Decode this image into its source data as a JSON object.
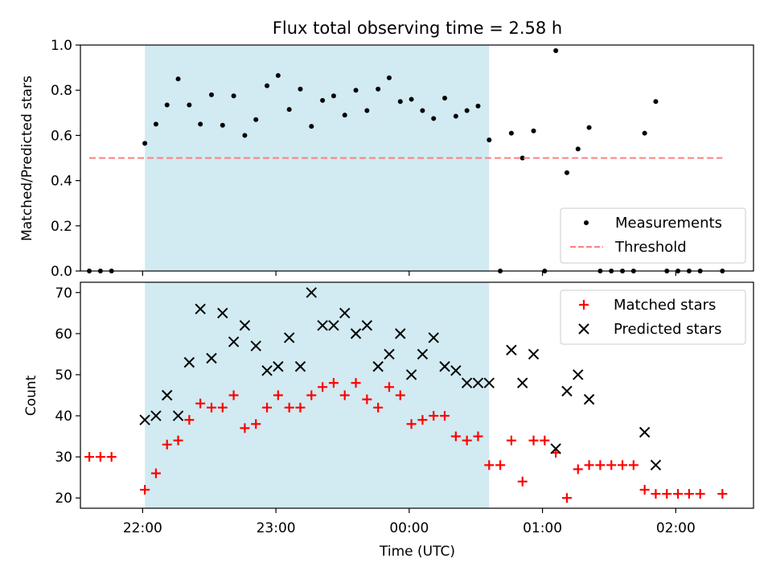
{
  "title": "Flux total observing time = 2.58 h",
  "xlabel": "Time (UTC)",
  "colors": {
    "span": "#add8e6",
    "measurement": "#000000",
    "threshold": "#ff7f7f",
    "matched": "#ff0000",
    "predicted": "#000000"
  },
  "chart_data": [
    {
      "type": "scatter",
      "ylabel": "Matched/Predicted stars",
      "ylim": [
        0,
        1.0
      ],
      "yticks": [
        0.0,
        0.2,
        0.4,
        0.6,
        0.8,
        1.0
      ],
      "x_axis": "time (hours after 21:00 UTC, shared)",
      "xticks": [
        "22:00",
        "23:00",
        "00:00",
        "01:00",
        "02:00"
      ],
      "xlim": [
        "21:32",
        "02:35"
      ],
      "observing_window": [
        "22:01",
        "00:36"
      ],
      "legend_position": "lower right",
      "series": [
        {
          "name": "Measurements",
          "marker": "dot",
          "points": [
            [
              "21:36",
              0.0
            ],
            [
              "21:41",
              0.0
            ],
            [
              "21:46",
              0.0
            ],
            [
              "22:01",
              0.565
            ],
            [
              "22:06",
              0.65
            ],
            [
              "22:11",
              0.735
            ],
            [
              "22:16",
              0.85
            ],
            [
              "22:21",
              0.735
            ],
            [
              "22:26",
              0.65
            ],
            [
              "22:31",
              0.78
            ],
            [
              "22:36",
              0.645
            ],
            [
              "22:41",
              0.775
            ],
            [
              "22:46",
              0.6
            ],
            [
              "22:51",
              0.67
            ],
            [
              "22:56",
              0.82
            ],
            [
              "23:01",
              0.865
            ],
            [
              "23:06",
              0.715
            ],
            [
              "23:11",
              0.805
            ],
            [
              "23:16",
              0.64
            ],
            [
              "23:21",
              0.755
            ],
            [
              "23:26",
              0.775
            ],
            [
              "23:31",
              0.69
            ],
            [
              "23:36",
              0.8
            ],
            [
              "23:41",
              0.71
            ],
            [
              "23:46",
              0.805
            ],
            [
              "23:51",
              0.855
            ],
            [
              "23:56",
              0.75
            ],
            [
              "00:01",
              0.76
            ],
            [
              "00:06",
              0.71
            ],
            [
              "00:11",
              0.675
            ],
            [
              "00:16",
              0.765
            ],
            [
              "00:21",
              0.685
            ],
            [
              "00:26",
              0.71
            ],
            [
              "00:31",
              0.73
            ],
            [
              "00:36",
              0.58
            ],
            [
              "00:41",
              0.0
            ],
            [
              "00:46",
              0.61
            ],
            [
              "00:51",
              0.5
            ],
            [
              "00:56",
              0.62
            ],
            [
              "01:01",
              0.0
            ],
            [
              "01:06",
              0.975
            ],
            [
              "01:11",
              0.435
            ],
            [
              "01:16",
              0.54
            ],
            [
              "01:21",
              0.635
            ],
            [
              "01:26",
              0.0
            ],
            [
              "01:31",
              0.0
            ],
            [
              "01:36",
              0.0
            ],
            [
              "01:41",
              0.0
            ],
            [
              "01:46",
              0.61
            ],
            [
              "01:51",
              0.75
            ],
            [
              "01:56",
              0.0
            ],
            [
              "02:01",
              0.0
            ],
            [
              "02:06",
              0.0
            ],
            [
              "02:11",
              0.0
            ],
            [
              "02:21",
              0.0
            ]
          ]
        },
        {
          "name": "Threshold",
          "style": "dashed",
          "points": [
            [
              "21:36",
              0.5
            ],
            [
              "02:21",
              0.5
            ]
          ]
        }
      ]
    },
    {
      "type": "scatter",
      "ylabel": "Count",
      "ylim": [
        17.5,
        72.5
      ],
      "yticks": [
        20,
        30,
        40,
        50,
        60,
        70
      ],
      "legend_position": "upper right",
      "series": [
        {
          "name": "Matched stars",
          "marker": "plus",
          "points": [
            [
              "21:36",
              30
            ],
            [
              "21:41",
              30
            ],
            [
              "21:46",
              30
            ],
            [
              "22:01",
              22
            ],
            [
              "22:06",
              26
            ],
            [
              "22:11",
              33
            ],
            [
              "22:16",
              34
            ],
            [
              "22:21",
              39
            ],
            [
              "22:26",
              43
            ],
            [
              "22:31",
              42
            ],
            [
              "22:36",
              42
            ],
            [
              "22:41",
              45
            ],
            [
              "22:46",
              37
            ],
            [
              "22:51",
              38
            ],
            [
              "22:56",
              42
            ],
            [
              "23:01",
              45
            ],
            [
              "23:06",
              42
            ],
            [
              "23:11",
              42
            ],
            [
              "23:16",
              45
            ],
            [
              "23:21",
              47
            ],
            [
              "23:26",
              48
            ],
            [
              "23:31",
              45
            ],
            [
              "23:36",
              48
            ],
            [
              "23:41",
              44
            ],
            [
              "23:46",
              42
            ],
            [
              "23:51",
              47
            ],
            [
              "23:56",
              45
            ],
            [
              "00:01",
              38
            ],
            [
              "00:06",
              39
            ],
            [
              "00:11",
              40
            ],
            [
              "00:16",
              40
            ],
            [
              "00:21",
              35
            ],
            [
              "00:26",
              34
            ],
            [
              "00:31",
              35
            ],
            [
              "00:36",
              28
            ],
            [
              "00:41",
              28
            ],
            [
              "00:46",
              34
            ],
            [
              "00:51",
              24
            ],
            [
              "00:56",
              34
            ],
            [
              "01:01",
              34
            ],
            [
              "01:06",
              31
            ],
            [
              "01:11",
              20
            ],
            [
              "01:16",
              27
            ],
            [
              "01:21",
              28
            ],
            [
              "01:26",
              28
            ],
            [
              "01:31",
              28
            ],
            [
              "01:36",
              28
            ],
            [
              "01:41",
              28
            ],
            [
              "01:46",
              22
            ],
            [
              "01:51",
              21
            ],
            [
              "01:56",
              21
            ],
            [
              "02:01",
              21
            ],
            [
              "02:06",
              21
            ],
            [
              "02:11",
              21
            ],
            [
              "02:21",
              21
            ]
          ]
        },
        {
          "name": "Predicted stars",
          "marker": "x",
          "points": [
            [
              "22:01",
              39
            ],
            [
              "22:06",
              40
            ],
            [
              "22:11",
              45
            ],
            [
              "22:16",
              40
            ],
            [
              "22:21",
              53
            ],
            [
              "22:26",
              66
            ],
            [
              "22:31",
              54
            ],
            [
              "22:36",
              65
            ],
            [
              "22:41",
              58
            ],
            [
              "22:46",
              62
            ],
            [
              "22:51",
              57
            ],
            [
              "22:56",
              51
            ],
            [
              "23:01",
              52
            ],
            [
              "23:06",
              59
            ],
            [
              "23:11",
              52
            ],
            [
              "23:16",
              70
            ],
            [
              "23:21",
              62
            ],
            [
              "23:26",
              62
            ],
            [
              "23:31",
              65
            ],
            [
              "23:36",
              60
            ],
            [
              "23:41",
              62
            ],
            [
              "23:46",
              52
            ],
            [
              "23:51",
              55
            ],
            [
              "23:56",
              60
            ],
            [
              "00:01",
              50
            ],
            [
              "00:06",
              55
            ],
            [
              "00:11",
              59
            ],
            [
              "00:16",
              52
            ],
            [
              "00:21",
              51
            ],
            [
              "00:26",
              48
            ],
            [
              "00:31",
              48
            ],
            [
              "00:36",
              48
            ],
            [
              "00:46",
              56
            ],
            [
              "00:51",
              48
            ],
            [
              "00:56",
              55
            ],
            [
              "01:06",
              32
            ],
            [
              "01:11",
              46
            ],
            [
              "01:16",
              50
            ],
            [
              "01:21",
              44
            ],
            [
              "01:46",
              36
            ],
            [
              "01:51",
              28
            ]
          ]
        }
      ]
    }
  ]
}
